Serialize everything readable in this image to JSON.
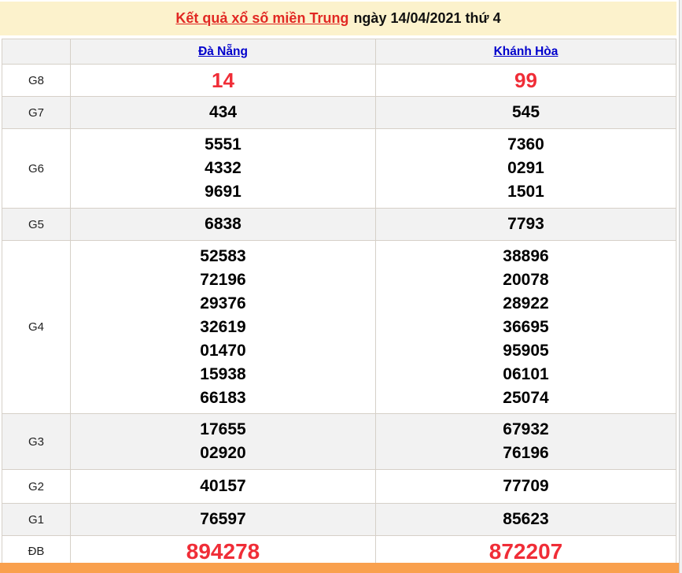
{
  "header": {
    "title_link": "Kết quả xổ số miền Trung",
    "title_date": "ngày 14/04/2021 thứ 4"
  },
  "table": {
    "columns": [
      {
        "label": "Đà Nẵng"
      },
      {
        "label": "Khánh Hòa"
      }
    ],
    "rows": [
      {
        "label": "G8",
        "highlight": true,
        "da_nang": [
          "14"
        ],
        "khanh_hoa": [
          "99"
        ]
      },
      {
        "label": "G7",
        "highlight": false,
        "da_nang": [
          "434"
        ],
        "khanh_hoa": [
          "545"
        ]
      },
      {
        "label": "G6",
        "highlight": false,
        "da_nang": [
          "5551",
          "4332",
          "9691"
        ],
        "khanh_hoa": [
          "7360",
          "0291",
          "1501"
        ]
      },
      {
        "label": "G5",
        "highlight": false,
        "da_nang": [
          "6838"
        ],
        "khanh_hoa": [
          "7793"
        ]
      },
      {
        "label": "G4",
        "highlight": false,
        "da_nang": [
          "52583",
          "72196",
          "29376",
          "32619",
          "01470",
          "15938",
          "66183"
        ],
        "khanh_hoa": [
          "38896",
          "20078",
          "28922",
          "36695",
          "95905",
          "06101",
          "25074"
        ]
      },
      {
        "label": "G3",
        "highlight": false,
        "da_nang": [
          "17655",
          "02920"
        ],
        "khanh_hoa": [
          "67932",
          "76196"
        ]
      },
      {
        "label": "G2",
        "highlight": false,
        "da_nang": [
          "40157"
        ],
        "khanh_hoa": [
          "77709"
        ]
      },
      {
        "label": "G1",
        "highlight": false,
        "da_nang": [
          "76597"
        ],
        "khanh_hoa": [
          "85623"
        ]
      },
      {
        "label": "ĐB",
        "highlight": true,
        "da_nang": [
          "894278"
        ],
        "khanh_hoa": [
          "872207"
        ]
      }
    ]
  },
  "colors": {
    "title_red": "#e12823",
    "number_red": "#f02d37",
    "link_blue": "#0000cc",
    "band_yellow": "#fcf2cc",
    "row_gray": "#f2f2f2",
    "table_border": "#d6d0c8",
    "orange_bar": "#f9a04d"
  }
}
